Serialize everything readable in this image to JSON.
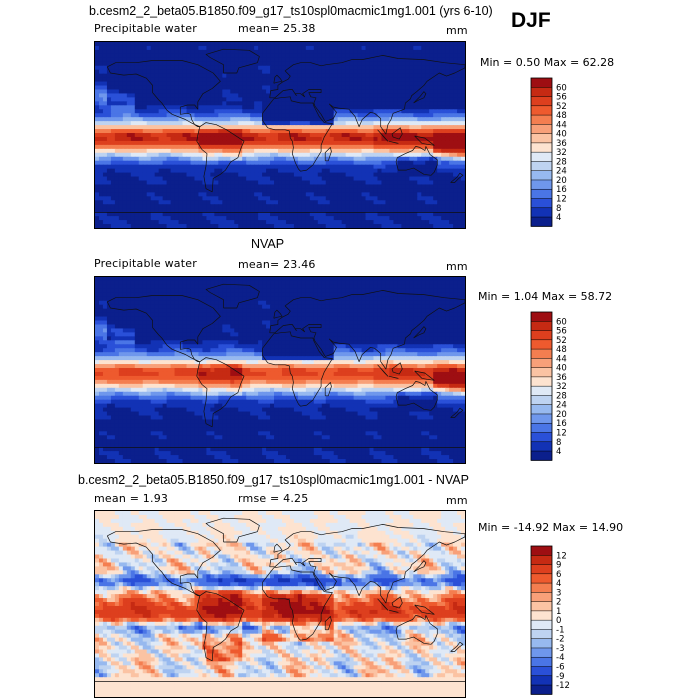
{
  "header": {
    "case_title": "b.cesm2_2_beta05.B1850.f09_g17_ts10spl0macmic1mg1.001 (yrs 6-10)",
    "season": "DJF"
  },
  "panels": [
    {
      "id": "model",
      "variable": "Precipitable water",
      "stat_text": "mean=  25.38",
      "units": "mm",
      "minmax": "Min =   0.50 Max =  62.28",
      "title": ""
    },
    {
      "id": "obs",
      "title": "NVAP",
      "variable": "Precipitable water",
      "stat_text": "mean=  23.46",
      "units": "mm",
      "minmax": "Min =   1.04 Max =  58.72"
    },
    {
      "id": "diff",
      "title": "b.cesm2_2_beta05.B1850.f09_g17_ts10spl0macmic1mg1.001 - NVAP",
      "mean_text": "mean =    1.93",
      "rmse_text": "rmse =    4.25",
      "units": "mm",
      "minmax": "Min = -14.92 Max =  14.90"
    }
  ],
  "colorbars": {
    "abs": {
      "levels": [
        "60",
        "56",
        "52",
        "48",
        "44",
        "40",
        "36",
        "32",
        "28",
        "24",
        "20",
        "16",
        "12",
        "8",
        "4"
      ],
      "colors": [
        "#9e0e12",
        "#c62a13",
        "#dd3f1e",
        "#ee5a2e",
        "#f47e50",
        "#f8a079",
        "#fbc3a3",
        "#fde3d0",
        "#dfe9f6",
        "#bed3f1",
        "#97b9ef",
        "#6f97ec",
        "#4a75e6",
        "#2a50d8",
        "#1232b5",
        "#0b1f8c"
      ]
    },
    "diff": {
      "levels": [
        "12",
        "9",
        "6",
        "4",
        "3",
        "2",
        "1",
        "0",
        "-1",
        "-2",
        "-3",
        "-4",
        "-6",
        "-9",
        "-12"
      ],
      "colors": [
        "#9e0e12",
        "#c62a13",
        "#dd3f1e",
        "#ee5a2e",
        "#f47e50",
        "#f8a079",
        "#fbc3a3",
        "#fde3d0",
        "#dfe9f6",
        "#bed3f1",
        "#97b9ef",
        "#6f97ec",
        "#4a75e6",
        "#2a50d8",
        "#1232b5",
        "#0b1f8c"
      ]
    }
  }
}
